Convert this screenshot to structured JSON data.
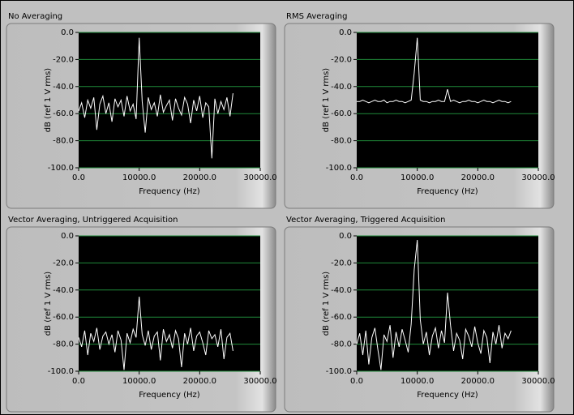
{
  "chart_data": [
    {
      "type": "line",
      "title": "No Averaging",
      "xlabel": "Frequency (Hz)",
      "ylabel": "dB (ref 1 V rms)",
      "x": [
        0,
        500,
        1000,
        1500,
        2000,
        2500,
        3000,
        3500,
        4000,
        4500,
        5000,
        5500,
        6000,
        6500,
        7000,
        7500,
        8000,
        8500,
        9000,
        9500,
        10000,
        10500,
        11000,
        11500,
        12000,
        12500,
        13000,
        13500,
        14000,
        14500,
        15000,
        15500,
        16000,
        16500,
        17000,
        17500,
        18000,
        18500,
        19000,
        19500,
        20000,
        20500,
        21000,
        21500,
        22000,
        22500,
        23000,
        23500,
        24000,
        24500,
        25000,
        25500
      ],
      "values": [
        -58,
        -52,
        -63,
        -50,
        -56,
        -48,
        -72,
        -53,
        -47,
        -60,
        -52,
        -66,
        -49,
        -55,
        -50,
        -62,
        -47,
        -58,
        -53,
        -64,
        -4,
        -51,
        -74,
        -48,
        -57,
        -52,
        -62,
        -46,
        -59,
        -54,
        -50,
        -65,
        -49,
        -56,
        -61,
        -48,
        -53,
        -67,
        -50,
        -58,
        -47,
        -63,
        -52,
        -55,
        -93,
        -49,
        -60,
        -51,
        -57,
        -48,
        -62,
        -45
      ],
      "color": "#ffffff",
      "grid": true,
      "xlim": [
        0,
        30000
      ],
      "ylim": [
        -100,
        0
      ],
      "xticks": [
        {
          "value": 0,
          "label": "0.0"
        },
        {
          "value": 10000,
          "label": "10000.0"
        },
        {
          "value": 20000,
          "label": "20000.0"
        },
        {
          "value": 30000,
          "label": "30000.0"
        }
      ],
      "yticks": [
        {
          "value": -100,
          "label": "-100.0"
        },
        {
          "value": -80,
          "label": "-80.0"
        },
        {
          "value": -60,
          "label": "-60.0"
        },
        {
          "value": -40,
          "label": "-40.0"
        },
        {
          "value": -20,
          "label": "-20.0"
        },
        {
          "value": 0,
          "label": "0.0"
        }
      ]
    },
    {
      "type": "line",
      "title": "RMS Averaging",
      "xlabel": "Frequency (Hz)",
      "ylabel": "dB (ref 1 V rms)",
      "x": [
        0,
        500,
        1000,
        1500,
        2000,
        2500,
        3000,
        3500,
        4000,
        4500,
        5000,
        5500,
        6000,
        6500,
        7000,
        7500,
        8000,
        8500,
        9000,
        9500,
        10000,
        10500,
        11000,
        11500,
        12000,
        12500,
        13000,
        13500,
        14000,
        14500,
        15000,
        15500,
        16000,
        16500,
        17000,
        17500,
        18000,
        18500,
        19000,
        19500,
        20000,
        20500,
        21000,
        21500,
        22000,
        22500,
        23000,
        23500,
        24000,
        24500,
        25000,
        25500
      ],
      "values": [
        -51,
        -51,
        -50,
        -51,
        -52,
        -51,
        -50,
        -51,
        -51,
        -50,
        -52,
        -51,
        -51,
        -50,
        -51,
        -51,
        -52,
        -51,
        -50,
        -30,
        -4,
        -50,
        -51,
        -51,
        -52,
        -51,
        -51,
        -50,
        -51,
        -51,
        -42,
        -51,
        -50,
        -51,
        -52,
        -51,
        -51,
        -50,
        -51,
        -51,
        -52,
        -51,
        -50,
        -51,
        -51,
        -52,
        -51,
        -50,
        -51,
        -51,
        -52,
        -51
      ],
      "color": "#ffffff",
      "grid": true,
      "xlim": [
        0,
        30000
      ],
      "ylim": [
        -100,
        0
      ],
      "xticks": [
        {
          "value": 0,
          "label": "0.0"
        },
        {
          "value": 10000,
          "label": "10000.0"
        },
        {
          "value": 20000,
          "label": "20000.0"
        },
        {
          "value": 30000,
          "label": "30000.0"
        }
      ],
      "yticks": [
        {
          "value": -100,
          "label": "-100.0"
        },
        {
          "value": -80,
          "label": "-80.0"
        },
        {
          "value": -60,
          "label": "-60.0"
        },
        {
          "value": -40,
          "label": "-40.0"
        },
        {
          "value": -20,
          "label": "-20.0"
        },
        {
          "value": 0,
          "label": "0.0"
        }
      ]
    },
    {
      "type": "line",
      "title": "Vector Averaging, Untriggered Acquisition",
      "xlabel": "Frequency (Hz)",
      "ylabel": "dB (ref 1 V rms)",
      "x": [
        0,
        500,
        1000,
        1500,
        2000,
        2500,
        3000,
        3500,
        4000,
        4500,
        5000,
        5500,
        6000,
        6500,
        7000,
        7500,
        8000,
        8500,
        9000,
        9500,
        10000,
        10500,
        11000,
        11500,
        12000,
        12500,
        13000,
        13500,
        14000,
        14500,
        15000,
        15500,
        16000,
        16500,
        17000,
        17500,
        18000,
        18500,
        19000,
        19500,
        20000,
        20500,
        21000,
        21500,
        22000,
        22500,
        23000,
        23500,
        24000,
        24500,
        25000,
        25500
      ],
      "values": [
        -75,
        -82,
        -70,
        -88,
        -72,
        -78,
        -68,
        -84,
        -74,
        -71,
        -80,
        -73,
        -86,
        -70,
        -77,
        -99,
        -72,
        -79,
        -69,
        -75,
        -45,
        -73,
        -81,
        -70,
        -84,
        -74,
        -71,
        -92,
        -69,
        -78,
        -73,
        -83,
        -70,
        -76,
        -97,
        -72,
        -80,
        -68,
        -85,
        -74,
        -71,
        -79,
        -88,
        -70,
        -76,
        -73,
        -82,
        -69,
        -91,
        -75,
        -72,
        -85
      ],
      "color": "#ffffff",
      "grid": true,
      "xlim": [
        0,
        30000
      ],
      "ylim": [
        -100,
        0
      ],
      "xticks": [
        {
          "value": 0,
          "label": "0.0"
        },
        {
          "value": 10000,
          "label": "10000.0"
        },
        {
          "value": 20000,
          "label": "20000.0"
        },
        {
          "value": 30000,
          "label": "30000.0"
        }
      ],
      "yticks": [
        {
          "value": -100,
          "label": "-100.0"
        },
        {
          "value": -80,
          "label": "-80.0"
        },
        {
          "value": -60,
          "label": "-60.0"
        },
        {
          "value": -40,
          "label": "-40.0"
        },
        {
          "value": -20,
          "label": "-20.0"
        },
        {
          "value": 0,
          "label": "0.0"
        }
      ]
    },
    {
      "type": "line",
      "title": "Vector Averaging, Triggered Acquisition",
      "xlabel": "Frequency (Hz)",
      "ylabel": "dB (ref 1 V rms)",
      "x": [
        0,
        500,
        1000,
        1500,
        2000,
        2500,
        3000,
        3500,
        4000,
        4500,
        5000,
        5500,
        6000,
        6500,
        7000,
        7500,
        8000,
        8500,
        9000,
        9500,
        10000,
        10500,
        11000,
        11500,
        12000,
        12500,
        13000,
        13500,
        14000,
        14500,
        15000,
        15500,
        16000,
        16500,
        17000,
        17500,
        18000,
        18500,
        19000,
        19500,
        20000,
        20500,
        21000,
        21500,
        22000,
        22500,
        23000,
        23500,
        24000,
        24500,
        25000,
        25500
      ],
      "values": [
        -80,
        -72,
        -88,
        -70,
        -95,
        -75,
        -68,
        -84,
        -99,
        -73,
        -78,
        -66,
        -90,
        -71,
        -82,
        -69,
        -77,
        -86,
        -65,
        -25,
        -3,
        -62,
        -80,
        -71,
        -88,
        -74,
        -68,
        -83,
        -70,
        -79,
        -42,
        -66,
        -85,
        -72,
        -77,
        -91,
        -69,
        -74,
        -82,
        -67,
        -79,
        -87,
        -70,
        -75,
        -94,
        -71,
        -80,
        -66,
        -83,
        -72,
        -76,
        -70
      ],
      "color": "#ffffff",
      "grid": true,
      "xlim": [
        0,
        30000
      ],
      "ylim": [
        -100,
        0
      ],
      "xticks": [
        {
          "value": 0,
          "label": "0.0"
        },
        {
          "value": 10000,
          "label": "10000.0"
        },
        {
          "value": 20000,
          "label": "20000.0"
        },
        {
          "value": 30000,
          "label": "30000.0"
        }
      ],
      "yticks": [
        {
          "value": -100,
          "label": "-100.0"
        },
        {
          "value": -80,
          "label": "-80.0"
        },
        {
          "value": -60,
          "label": "-60.0"
        },
        {
          "value": -40,
          "label": "-40.0"
        },
        {
          "value": -20,
          "label": "-20.0"
        },
        {
          "value": 0,
          "label": "0.0"
        }
      ]
    }
  ]
}
